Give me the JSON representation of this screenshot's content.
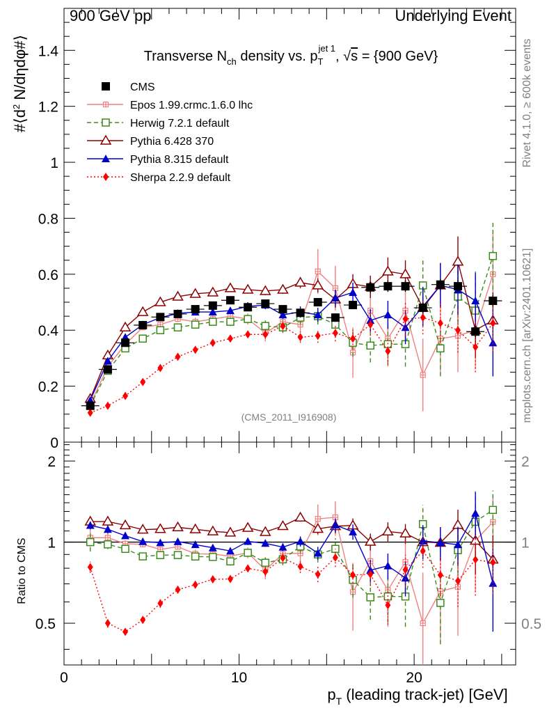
{
  "header": {
    "left": "900 GeV pp",
    "right": "Underlying Event"
  },
  "side": {
    "rivet": "Rivet 4.1.0, ≥ 600k events",
    "mcplots": "mcplots.cern.ch [arXiv:2401.10621]"
  },
  "watermark": "(CMS_2011_I916908)",
  "chart_data": [
    {
      "panel": "main",
      "type": "scatter",
      "title": "Transverse N_ch density vs. p_T^jet 1, √s = {900 GeV}",
      "title_parts": {
        "a": "Transverse N",
        "a_sub": "ch",
        "b": " density vs. p",
        "b_sub": "T",
        "b_sup": "jet 1",
        "c": ", ",
        "c_sqrt": "√",
        "c_over": "s",
        "d": " = {900 GeV}"
      },
      "ylabel": "#⟨d² N/dηdφ#⟩",
      "ylabel_parts": {
        "pre": "#⟨d",
        "sup": "2",
        "post": " N/dηdφ#⟩"
      },
      "xlim": [
        0,
        25.8
      ],
      "ylim": [
        0,
        1.55
      ],
      "yticks": [
        0,
        0.2,
        0.4,
        0.6,
        0.8,
        1,
        1.2,
        1.4
      ],
      "ytick_labels": [
        "0",
        "0.2",
        "0.4",
        "0.6",
        "0.8",
        "1",
        "1.2",
        "1.4"
      ],
      "x": [
        1.5,
        2.5,
        3.5,
        4.5,
        5.5,
        6.5,
        7.5,
        8.5,
        9.5,
        10.5,
        11.5,
        12.5,
        13.5,
        14.5,
        15.5,
        16.5,
        17.5,
        18.5,
        19.5,
        20.5,
        21.5,
        22.5,
        23.5,
        24.5
      ],
      "series": [
        {
          "name": "CMS",
          "color": "#000000",
          "marker": "square-filled",
          "line": "none",
          "values": [
            0.13,
            0.26,
            0.355,
            0.418,
            0.447,
            0.458,
            0.475,
            0.488,
            0.507,
            0.482,
            0.495,
            0.475,
            0.462,
            0.5,
            0.445,
            0.49,
            0.553,
            0.557,
            0.557,
            0.48,
            0.563,
            0.557,
            0.395,
            0.505
          ],
          "errors": [
            0.01,
            0.01,
            0.01,
            0.01,
            0.01,
            0.01,
            0.01,
            0.01,
            0.01,
            0.01,
            0.01,
            0.012,
            0.012,
            0.015,
            0.015,
            0.015,
            0.02,
            0.02,
            0.02,
            0.02,
            0.02,
            0.02,
            0.02,
            0.02
          ]
        },
        {
          "name": "Epos 1.99.crmc.1.6.0 lhc",
          "color": "#f08080",
          "marker": "cross-square-open",
          "line": "solid",
          "values": [
            0.135,
            0.27,
            0.35,
            0.41,
            0.42,
            0.44,
            0.43,
            0.44,
            0.45,
            0.44,
            0.39,
            0.43,
            0.42,
            0.61,
            0.55,
            0.32,
            0.47,
            0.37,
            0.47,
            0.24,
            0.37,
            0.38,
            0.4,
            0.6
          ],
          "errors": [
            0.01,
            0.01,
            0.01,
            0.01,
            0.01,
            0.01,
            0.015,
            0.015,
            0.015,
            0.02,
            0.03,
            0.03,
            0.03,
            0.08,
            0.08,
            0.09,
            0.09,
            0.1,
            0.11,
            0.13,
            0.13,
            0.13,
            0.14,
            0.15
          ]
        },
        {
          "name": "Herwig 7.2.1 default",
          "color": "#3a8a1a",
          "marker": "square-open",
          "line": "dashed",
          "values": [
            0.13,
            0.255,
            0.335,
            0.37,
            0.4,
            0.41,
            0.42,
            0.43,
            0.43,
            0.44,
            0.415,
            0.41,
            0.445,
            0.45,
            0.42,
            0.355,
            0.345,
            0.35,
            0.35,
            0.56,
            0.335,
            0.52,
            0.47,
            0.665
          ],
          "errors": [
            0.01,
            0.01,
            0.01,
            0.01,
            0.01,
            0.01,
            0.01,
            0.01,
            0.015,
            0.015,
            0.02,
            0.02,
            0.025,
            0.03,
            0.04,
            0.05,
            0.06,
            0.07,
            0.08,
            0.1,
            0.1,
            0.12,
            0.14,
            0.12
          ]
        },
        {
          "name": "Pythia 6.428 370",
          "color": "#8b0000",
          "marker": "triangle-open",
          "line": "solid",
          "values": [
            0.155,
            0.31,
            0.41,
            0.465,
            0.5,
            0.52,
            0.53,
            0.535,
            0.55,
            0.545,
            0.54,
            0.545,
            0.57,
            0.56,
            0.51,
            0.565,
            0.555,
            0.61,
            0.6,
            0.48,
            0.56,
            0.645,
            0.4,
            0.435
          ],
          "errors": [
            0.005,
            0.01,
            0.01,
            0.01,
            0.01,
            0.01,
            0.01,
            0.01,
            0.01,
            0.01,
            0.015,
            0.015,
            0.02,
            0.025,
            0.03,
            0.035,
            0.04,
            0.05,
            0.05,
            0.06,
            0.08,
            0.09,
            0.1,
            0.1
          ]
        },
        {
          "name": "Pythia 8.315 default",
          "color": "#0000cc",
          "marker": "triangle-filled",
          "line": "solid",
          "values": [
            0.15,
            0.29,
            0.375,
            0.42,
            0.445,
            0.46,
            0.465,
            0.465,
            0.47,
            0.485,
            0.49,
            0.455,
            0.465,
            0.455,
            0.515,
            0.535,
            0.435,
            0.455,
            0.41,
            0.485,
            0.56,
            0.545,
            0.505,
            0.355
          ],
          "errors": [
            0.005,
            0.01,
            0.01,
            0.01,
            0.01,
            0.01,
            0.01,
            0.01,
            0.01,
            0.015,
            0.015,
            0.015,
            0.02,
            0.025,
            0.03,
            0.035,
            0.04,
            0.05,
            0.06,
            0.07,
            0.08,
            0.09,
            0.1,
            0.12
          ]
        },
        {
          "name": "Sherpa 2.2.9 default",
          "color": "#ff0000",
          "marker": "diamond-filled",
          "line": "dotted",
          "values": [
            0.105,
            0.13,
            0.165,
            0.215,
            0.265,
            0.305,
            0.33,
            0.355,
            0.37,
            0.385,
            0.385,
            0.415,
            0.375,
            0.38,
            0.39,
            0.37,
            0.42,
            0.325,
            0.44,
            0.445,
            0.425,
            0.4,
            0.34,
            0.425
          ],
          "errors": [
            0.005,
            0.005,
            0.005,
            0.005,
            0.01,
            0.01,
            0.01,
            0.01,
            0.01,
            0.01,
            0.015,
            0.02,
            0.02,
            0.025,
            0.03,
            0.035,
            0.04,
            0.05,
            0.06,
            0.06,
            0.07,
            0.08,
            0.09,
            0.1
          ]
        }
      ]
    },
    {
      "panel": "ratio",
      "type": "scatter",
      "ylabel": "Ratio to CMS",
      "xlabel": "p_T (leading track-jet) [GeV]",
      "xlabel_parts": {
        "pre": "p",
        "sub": "T",
        "post": " (leading track-jet) [GeV]"
      },
      "xlim": [
        0,
        25.8
      ],
      "ylim": [
        0.35,
        2.35
      ],
      "xticks": [
        0,
        10,
        20
      ],
      "xtick_labels": [
        "0",
        "10",
        "20"
      ],
      "yticks": [
        0.5,
        1,
        2
      ],
      "ytick_labels": [
        "0.5",
        "1",
        "2"
      ],
      "reference_line": 1
    }
  ]
}
